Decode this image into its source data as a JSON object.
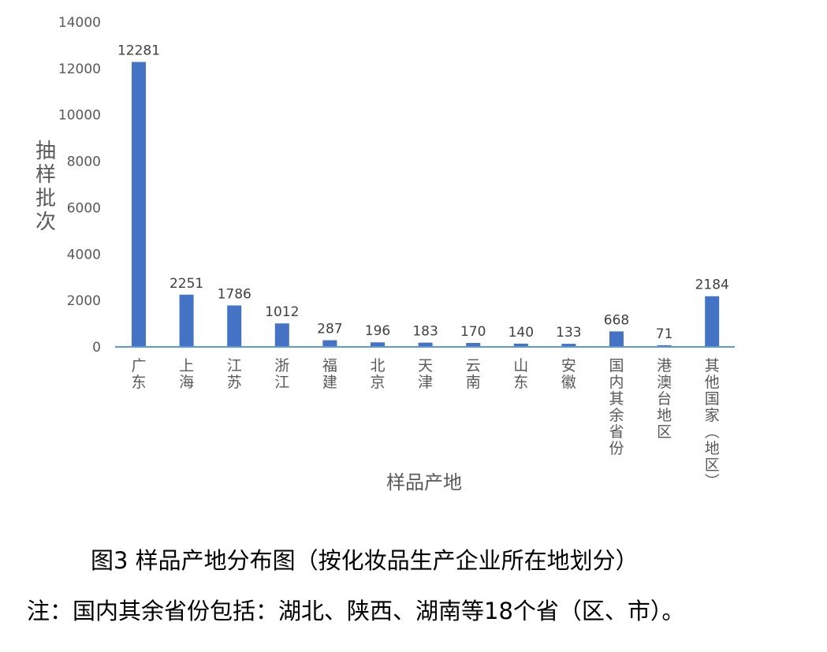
{
  "chart_data": {
    "type": "bar",
    "categories": [
      "广东",
      "上海",
      "江苏",
      "浙江",
      "福建",
      "北京",
      "天津",
      "云南",
      "山东",
      "安徽",
      "国内其余省份",
      "港澳台地区",
      "其他国家（地区）"
    ],
    "values": [
      12281,
      2251,
      1786,
      1012,
      287,
      196,
      183,
      170,
      140,
      133,
      668,
      71,
      2184
    ],
    "ylabel": "抽样批次",
    "xlabel": "样品产地",
    "ylim": [
      0,
      14000
    ],
    "yticks": [
      0,
      2000,
      4000,
      6000,
      8000,
      10000,
      12000,
      14000
    ],
    "bar_color": "#4472C4",
    "axis_color": "#5B9BD5",
    "grid": false
  },
  "caption": "图3 样品产地分布图（按化妆品生产企业所在地划分）",
  "note": "注：国内其余省份包括：湖北、陕西、湖南等18个省（区、市）。"
}
